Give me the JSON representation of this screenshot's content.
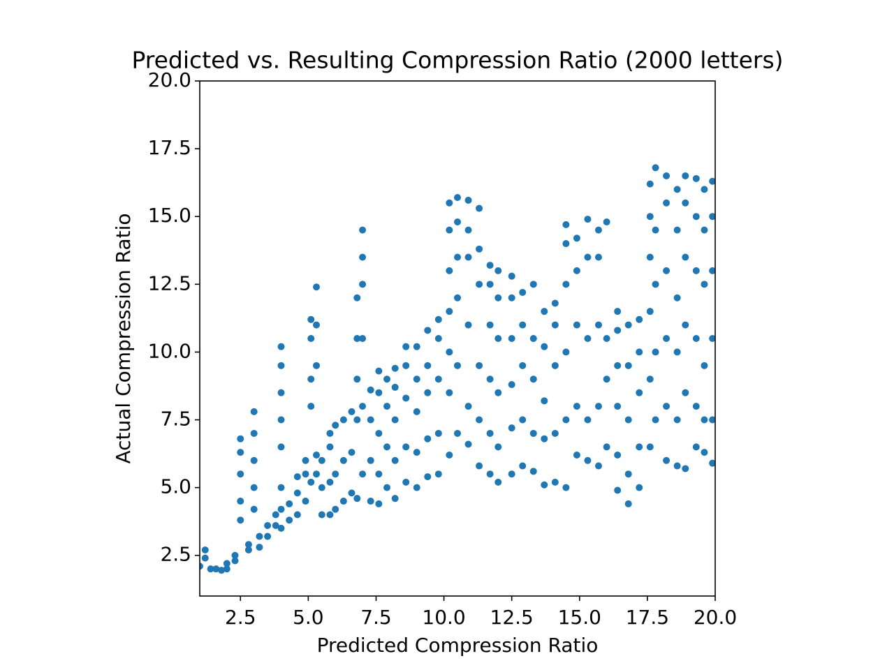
{
  "chart_data": {
    "type": "scatter",
    "title": "Predicted vs. Resulting Compression Ratio (2000 letters)",
    "xlabel": "Predicted Compression Ratio",
    "ylabel": "Actual Compression Ratio",
    "color": "#1f77b4",
    "xlim": [
      1,
      20
    ],
    "ylim": [
      1,
      20
    ],
    "xticks": [
      2.5,
      {
        "value": 5,
        "label": "5.0"
      },
      7.5,
      {
        "value": 10,
        "label": "10.0"
      },
      12.5,
      {
        "value": 15,
        "label": "15.0"
      },
      17.5,
      {
        "value": 20,
        "label": "20.0"
      }
    ],
    "yticks": [
      2.5,
      {
        "value": 5,
        "label": "5.0"
      },
      7.5,
      {
        "value": 10,
        "label": "10.0"
      },
      12.5,
      {
        "value": 15,
        "label": "15.0"
      },
      17.5,
      {
        "value": 20,
        "label": "20.0"
      }
    ],
    "x": [
      1.0,
      1.2,
      1.2,
      1.4,
      1.6,
      1.8,
      2.0,
      2.0,
      2.3,
      2.3,
      2.5,
      2.5,
      2.5,
      2.5,
      2.5,
      2.8,
      2.8,
      3.0,
      3.0,
      3.0,
      3.0,
      3.0,
      3.2,
      3.2,
      3.5,
      3.5,
      3.8,
      3.8,
      4.0,
      4.0,
      4.0,
      4.0,
      4.0,
      4.0,
      4.0,
      4.0,
      4.3,
      4.3,
      4.6,
      4.6,
      4.6,
      4.9,
      4.9,
      4.9,
      5.1,
      5.1,
      5.1,
      5.1,
      5.1,
      5.3,
      5.3,
      5.3,
      5.3,
      5.3,
      5.5,
      5.5,
      5.5,
      5.8,
      5.8,
      5.8,
      5.8,
      6.0,
      6.0,
      6.0,
      6.3,
      6.3,
      6.3,
      6.6,
      6.6,
      6.6,
      6.8,
      6.8,
      6.8,
      6.8,
      6.8,
      7.0,
      7.0,
      7.0,
      7.0,
      7.0,
      7.0,
      7.3,
      7.3,
      7.3,
      7.3,
      7.6,
      7.6,
      7.6,
      7.6,
      7.6,
      7.9,
      7.9,
      7.9,
      7.9,
      8.2,
      8.2,
      8.2,
      8.2,
      8.2,
      8.6,
      8.6,
      8.6,
      8.6,
      8.6,
      9.0,
      9.0,
      9.0,
      9.0,
      9.0,
      9.4,
      9.4,
      9.4,
      9.4,
      9.4,
      9.8,
      9.8,
      9.8,
      9.8,
      9.8,
      10.2,
      10.2,
      10.2,
      10.2,
      10.2,
      10.2,
      10.2,
      10.5,
      10.5,
      10.5,
      10.5,
      10.5,
      10.5,
      10.9,
      10.9,
      10.9,
      10.9,
      10.9,
      10.9,
      11.3,
      11.3,
      11.3,
      11.3,
      11.3,
      11.3,
      11.7,
      11.7,
      11.7,
      11.7,
      11.7,
      11.7,
      12.0,
      12.0,
      12.0,
      12.0,
      12.0,
      12.0,
      12.5,
      12.5,
      12.5,
      12.5,
      12.5,
      12.5,
      12.9,
      12.9,
      12.9,
      12.9,
      12.9,
      13.3,
      13.3,
      13.3,
      13.3,
      13.3,
      13.7,
      13.7,
      13.7,
      13.7,
      13.7,
      14.1,
      14.1,
      14.1,
      14.1,
      14.1,
      14.5,
      14.5,
      14.5,
      14.5,
      14.5,
      14.5,
      14.9,
      14.9,
      14.9,
      14.9,
      14.9,
      15.3,
      15.3,
      15.3,
      15.3,
      15.3,
      15.7,
      15.7,
      15.7,
      15.7,
      15.7,
      16.0,
      16.0,
      16.0,
      16.0,
      16.4,
      16.4,
      16.4,
      16.4,
      16.4,
      16.4,
      16.8,
      16.8,
      16.8,
      16.8,
      16.8,
      17.2,
      17.2,
      17.2,
      17.2,
      17.2,
      17.6,
      17.6,
      17.6,
      17.6,
      17.6,
      17.6,
      17.8,
      17.8,
      17.8,
      17.8,
      17.8,
      18.2,
      18.2,
      18.2,
      18.2,
      18.2,
      18.2,
      18.6,
      18.6,
      18.6,
      18.6,
      18.6,
      18.6,
      18.9,
      18.9,
      18.9,
      18.9,
      18.9,
      18.9,
      19.3,
      19.3,
      19.3,
      19.3,
      19.3,
      19.3,
      19.6,
      19.6,
      19.6,
      19.6,
      19.6,
      19.6,
      19.9,
      19.9,
      19.9,
      19.9,
      19.9,
      19.9
    ],
    "y": [
      2.1,
      2.4,
      2.7,
      2.0,
      2.0,
      1.95,
      2.0,
      2.2,
      2.3,
      2.5,
      3.8,
      4.5,
      5.5,
      6.3,
      6.8,
      2.7,
      2.9,
      4.2,
      5.0,
      6.0,
      7.0,
      7.8,
      2.8,
      3.2,
      3.2,
      3.6,
      3.6,
      4.0,
      3.5,
      4.2,
      5.0,
      6.5,
      7.5,
      8.5,
      9.5,
      10.2,
      3.8,
      4.4,
      4.0,
      4.8,
      5.4,
      4.5,
      5.5,
      6.0,
      5.2,
      8.0,
      9.0,
      10.5,
      11.2,
      5.5,
      6.2,
      9.5,
      11.0,
      12.4,
      4.0,
      5.0,
      6.0,
      4.0,
      5.2,
      6.5,
      7.0,
      4.2,
      5.5,
      7.3,
      4.5,
      6.0,
      7.5,
      4.8,
      6.3,
      7.8,
      4.6,
      7.5,
      9.0,
      10.5,
      12.0,
      5.5,
      8.0,
      10.5,
      12.5,
      13.5,
      14.5,
      4.5,
      6.0,
      7.5,
      8.6,
      4.4,
      5.5,
      7.0,
      8.5,
      9.3,
      5.0,
      6.5,
      8.0,
      9.0,
      4.6,
      6.0,
      7.5,
      8.7,
      9.4,
      5.2,
      6.5,
      8.3,
      9.5,
      10.2,
      5.0,
      6.3,
      7.8,
      9.0,
      10.2,
      5.4,
      6.8,
      8.5,
      9.5,
      10.8,
      5.5,
      7.0,
      9.0,
      10.5,
      11.2,
      6.2,
      8.5,
      10.0,
      11.5,
      13.0,
      14.5,
      15.5,
      7.0,
      9.5,
      12.0,
      13.5,
      14.8,
      15.7,
      6.6,
      8.0,
      11.0,
      13.5,
      14.5,
      15.6,
      5.8,
      7.5,
      9.5,
      12.5,
      13.8,
      15.3,
      5.5,
      7.0,
      9.0,
      11.0,
      12.5,
      13.2,
      5.2,
      6.5,
      8.5,
      10.5,
      12.0,
      13.0,
      5.5,
      7.2,
      8.8,
      10.5,
      12.0,
      12.8,
      5.8,
      7.5,
      9.5,
      11.0,
      12.2,
      5.6,
      7.0,
      9.0,
      10.5,
      12.5,
      5.1,
      6.8,
      8.2,
      10.2,
      11.5,
      5.2,
      7.0,
      9.5,
      11.0,
      11.8,
      5.0,
      7.5,
      10.0,
      12.5,
      14.0,
      14.7,
      6.2,
      8.0,
      11.0,
      13.0,
      14.2,
      6.0,
      7.5,
      10.5,
      13.5,
      14.9,
      5.8,
      8.0,
      11.0,
      13.5,
      14.5,
      6.5,
      9.0,
      10.5,
      14.8,
      4.9,
      6.2,
      8.0,
      9.5,
      10.8,
      11.5,
      4.4,
      5.5,
      7.5,
      9.5,
      11.0,
      5.0,
      6.5,
      8.5,
      10.0,
      11.2,
      6.5,
      9.0,
      11.5,
      13.5,
      15.0,
      16.2,
      7.5,
      10.0,
      12.5,
      14.5,
      16.8,
      6.0,
      8.0,
      10.5,
      13.0,
      15.5,
      16.5,
      5.8,
      7.5,
      10.0,
      12.0,
      14.5,
      16.0,
      5.7,
      8.5,
      11.0,
      13.5,
      15.5,
      16.5,
      6.5,
      8.0,
      10.5,
      13.0,
      15.0,
      16.4,
      6.3,
      7.5,
      9.5,
      12.5,
      14.5,
      16.0,
      5.9,
      7.5,
      10.5,
      13.0,
      15.0,
      16.3
    ]
  }
}
